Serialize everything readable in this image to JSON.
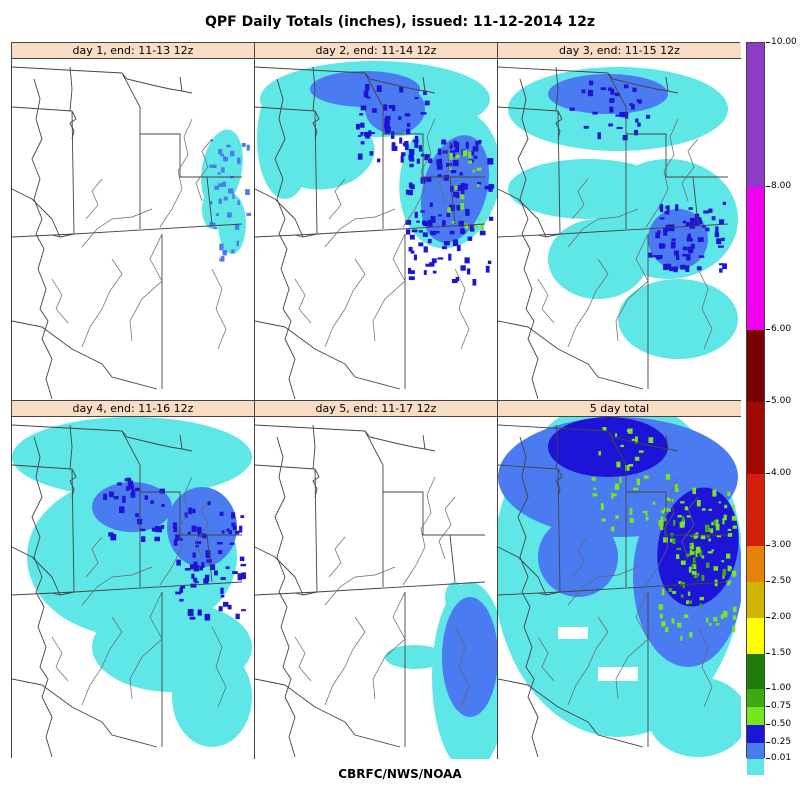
{
  "title": "QPF Daily Totals (inches),  issued: 11-12-2014 12z",
  "footer": "CBRFC/NWS/NOAA",
  "panels": [
    {
      "label": "day 1, end: 11-13 12z",
      "coverage": "light"
    },
    {
      "label": "day 2, end: 11-14 12z",
      "coverage": "north-heavy"
    },
    {
      "label": "day 3, end: 11-15 12z",
      "coverage": "widespread-light"
    },
    {
      "label": "day 4, end: 11-16 12z",
      "coverage": "widespread-moderate"
    },
    {
      "label": "day 5, end: 11-17 12z",
      "coverage": "southeast"
    },
    {
      "label": "5 day total",
      "coverage": "total"
    }
  ],
  "colorbar": {
    "labels": [
      "10.00",
      "8.00",
      "6.00",
      "5.00",
      "4.00",
      "3.00",
      "2.50",
      "2.00",
      "1.50",
      "1.00",
      "0.75",
      "0.50",
      "0.25",
      "0.01"
    ],
    "colors": {
      "0.01": "#5fe6e6",
      "0.25": "#4b7bf0",
      "0.50": "#1e14d8",
      "0.75": "#78e61e",
      "1.00": "#3caa10",
      "1.50": "#1e7a0a",
      "2.00": "#ffff00",
      "2.50": "#d2b400",
      "3.00": "#e6820a",
      "4.00": "#d21e0a",
      "5.00": "#a00a00",
      "6.00": "#780000",
      "8.00": "#f000f0",
      "10.00": "#8c3cc8"
    }
  }
}
